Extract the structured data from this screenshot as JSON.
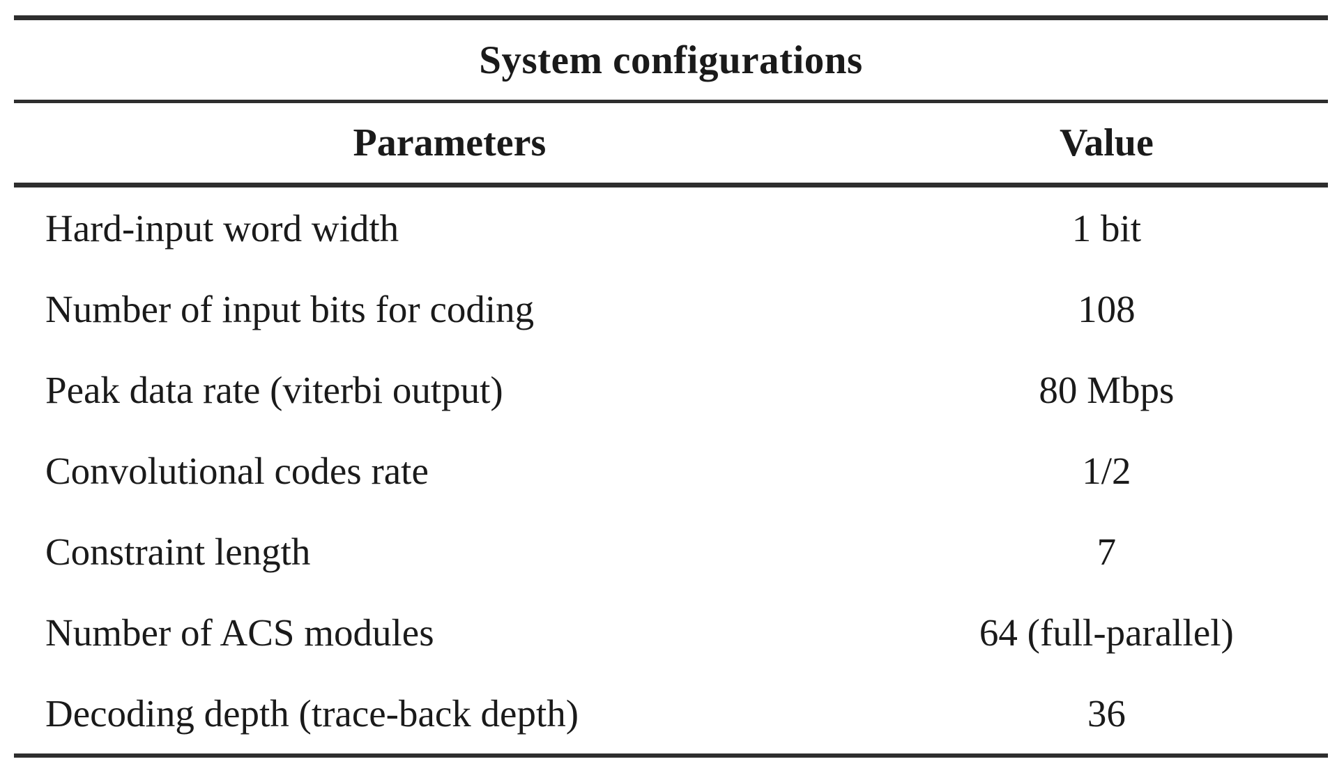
{
  "table": {
    "title": "System configurations",
    "columns": [
      "Parameters",
      "Value"
    ],
    "rows": [
      {
        "parameter": "Hard-input word width",
        "value": "1 bit"
      },
      {
        "parameter": "Number of input bits for coding",
        "value": "108"
      },
      {
        "parameter": "Peak data rate (viterbi output)",
        "value": "80 Mbps"
      },
      {
        "parameter": "Convolutional codes rate",
        "value": "1/2"
      },
      {
        "parameter": "Constraint length",
        "value": "7"
      },
      {
        "parameter": "Number of ACS modules",
        "value": "64 (full-parallel)"
      },
      {
        "parameter": "Decoding depth (trace-back depth)",
        "value": "36"
      }
    ]
  },
  "colors": {
    "background": "#ffffff",
    "text": "#1a1a1a",
    "rule": "#2e2e2e"
  }
}
